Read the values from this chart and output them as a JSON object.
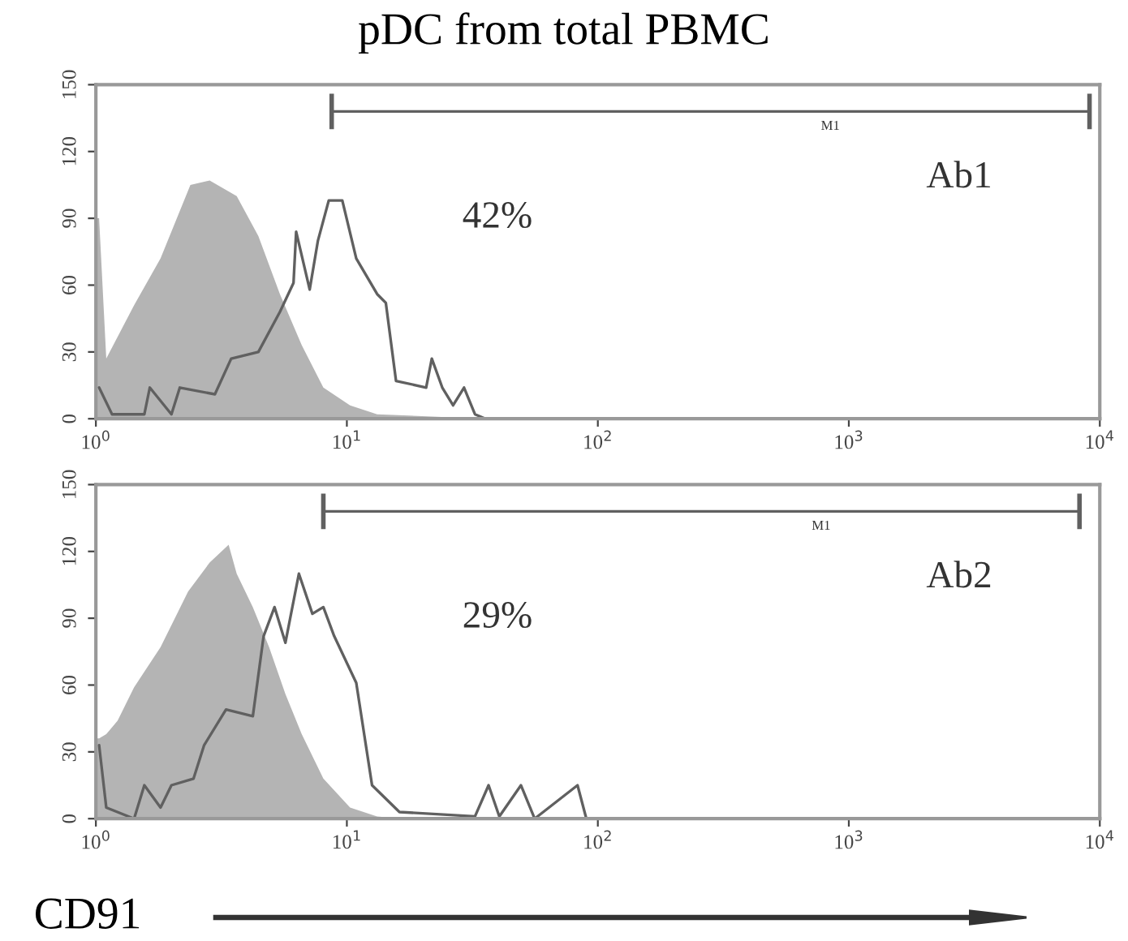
{
  "chart_data": [
    {
      "type": "area",
      "title": "pDC from total PBMC",
      "log": "x",
      "xlim": [
        1,
        10000
      ],
      "ylim": [
        0,
        150
      ],
      "xticks": [
        {
          "value": 1,
          "label": "10$^{0}$"
        },
        {
          "value": 10,
          "label": "10$^{1}$"
        },
        {
          "value": 100,
          "label": "10$^{2}$"
        },
        {
          "value": 1000,
          "label": "10$^{3}$"
        },
        {
          "value": 10000,
          "label": "10$^{4}$"
        }
      ],
      "yticks": [
        0,
        30,
        60,
        90,
        120,
        150
      ],
      "series": [
        {
          "color": "#b4b4b4",
          "x": [
            1.0,
            1.03,
            1.1,
            1.42,
            1.81,
            2.38,
            2.84,
            3.64,
            4.44,
            5.41,
            6.61,
            8.06,
            10.3,
            13.2,
            35.7
          ],
          "values": [
            90,
            90,
            27,
            51,
            72,
            105,
            107,
            100,
            82,
            56,
            33,
            14,
            6,
            2,
            0
          ]
        },
        {
          "type": "line",
          "color": "#606060",
          "x": [
            1.03,
            1.16,
            1.56,
            1.64,
            2.0,
            2.16,
            2.98,
            3.46,
            4.44,
            5.41,
            6.13,
            6.28,
            7.11,
            7.67,
            8.47,
            9.59,
            10.9,
            13.2,
            14.3,
            15.7,
            20.7,
            21.8,
            24.0,
            26.5,
            29.3,
            32.4,
            35.7
          ],
          "values": [
            14,
            2,
            2,
            14,
            2,
            14,
            11,
            27,
            30,
            48,
            61,
            84,
            58,
            80,
            98,
            98,
            72,
            56,
            52,
            17,
            14,
            27,
            14,
            6,
            14,
            2,
            0
          ]
        },
        {
          "type": "line",
          "name": "M1",
          "color": "#606060",
          "x": [
            8.7,
            9100
          ],
          "values": [
            138,
            138
          ],
          "errors": [
            8,
            8
          ]
        }
      ],
      "annotations": [
        "Ab1",
        "42%"
      ],
      "grid": false,
      "legend": false
    },
    {
      "type": "area",
      "xlabel": "CD91",
      "log": "x",
      "xlim": [
        1,
        10000
      ],
      "ylim": [
        0,
        150
      ],
      "xticks": [
        {
          "value": 1,
          "label": "10$^{0}$"
        },
        {
          "value": 10,
          "label": "10$^{1}$"
        },
        {
          "value": 100,
          "label": "10$^{2}$"
        },
        {
          "value": 1000,
          "label": "10$^{3}$"
        },
        {
          "value": 10000,
          "label": "10$^{4}$"
        }
      ],
      "yticks": [
        0,
        30,
        60,
        90,
        120,
        150
      ],
      "series": [
        {
          "color": "#b4b4b4",
          "x": [
            1.0,
            1.03,
            1.1,
            1.22,
            1.42,
            1.81,
            2.33,
            2.84,
            3.38,
            3.64,
            4.22,
            4.9,
            5.69,
            6.61,
            8.06,
            10.3,
            13.2,
            17.0
          ],
          "values": [
            36,
            36,
            38,
            44,
            59,
            77,
            102,
            115,
            123,
            110,
            95,
            77,
            56,
            38,
            18,
            5,
            1,
            0
          ]
        },
        {
          "type": "line",
          "color": "#606060",
          "x": [
            1.03,
            1.1,
            1.42,
            1.56,
            1.81,
            2.0,
            2.45,
            2.7,
            3.3,
            4.22,
            4.66,
            5.15,
            5.69,
            6.44,
            7.29,
            8.06,
            8.9,
            10.9,
            12.6,
            16.2,
            32.4,
            36.7,
            40.5,
            49.4,
            56,
            83,
            90
          ],
          "values": [
            33,
            5,
            0,
            15,
            5,
            15,
            18,
            33,
            49,
            46,
            82,
            95,
            79,
            110,
            92,
            95,
            82,
            61,
            15,
            3,
            1,
            15,
            1,
            15,
            0,
            15,
            0
          ]
        },
        {
          "type": "line",
          "name": "M1",
          "color": "#606060",
          "x": [
            8.06,
            8300
          ],
          "values": [
            138,
            138
          ],
          "errors": [
            8,
            8
          ]
        }
      ],
      "annotations": [
        "Ab2",
        "29%"
      ],
      "grid": false,
      "legend": false
    }
  ]
}
